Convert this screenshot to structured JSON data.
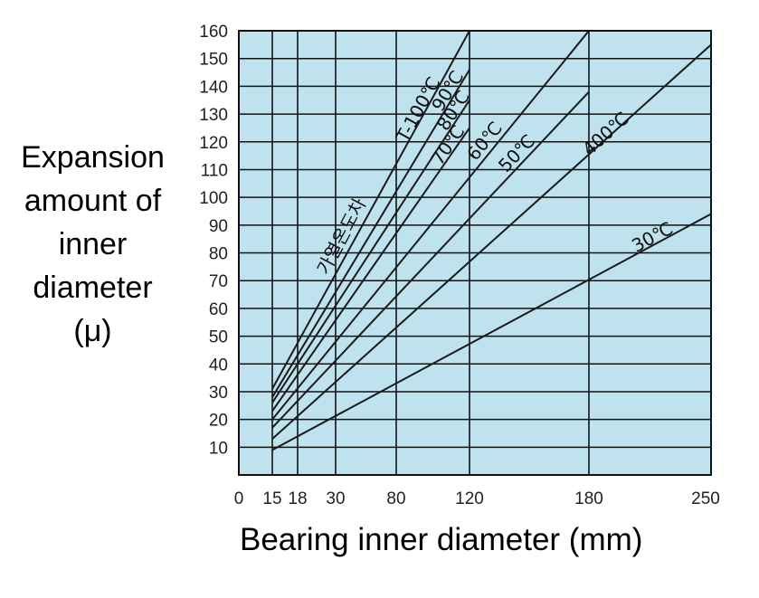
{
  "chart_data": {
    "type": "line",
    "xlabel": "Bearing inner diameter (mm)",
    "ylabel_lines": [
      "Expansion",
      "amount of",
      "inner",
      "diameter",
      "(μ)"
    ],
    "x_ticks": [
      "0",
      "15",
      "18",
      "30",
      "80",
      "120",
      "180",
      "250"
    ],
    "y_ticks": [
      10,
      20,
      30,
      40,
      50,
      60,
      70,
      80,
      90,
      100,
      110,
      120,
      130,
      140,
      150,
      160
    ],
    "ylim": [
      0,
      160
    ],
    "grid": true,
    "background_color": "#bfe3ee",
    "line_color": "#1a1a1a",
    "series": [
      {
        "name": "T-100℃",
        "x": [
          15,
          120
        ],
        "y": [
          31,
          160
        ]
      },
      {
        "name": "90℃",
        "x": [
          15,
          120
        ],
        "y": [
          28,
          146
        ]
      },
      {
        "name": "80℃",
        "x": [
          15,
          120
        ],
        "y": [
          26,
          135
        ]
      },
      {
        "name": "70℃",
        "x": [
          15,
          120
        ],
        "y": [
          23,
          125
        ]
      },
      {
        "name": "60℃",
        "x": [
          15,
          180
        ],
        "y": [
          20,
          160
        ]
      },
      {
        "name": "50℃",
        "x": [
          15,
          180
        ],
        "y": [
          17,
          138
        ]
      },
      {
        "name": "400℃",
        "x": [
          15,
          250
        ],
        "y": [
          13,
          155
        ]
      },
      {
        "name": "30℃",
        "x": [
          15,
          250
        ],
        "y": [
          9,
          94
        ]
      }
    ],
    "annotation": "가열온도차"
  }
}
